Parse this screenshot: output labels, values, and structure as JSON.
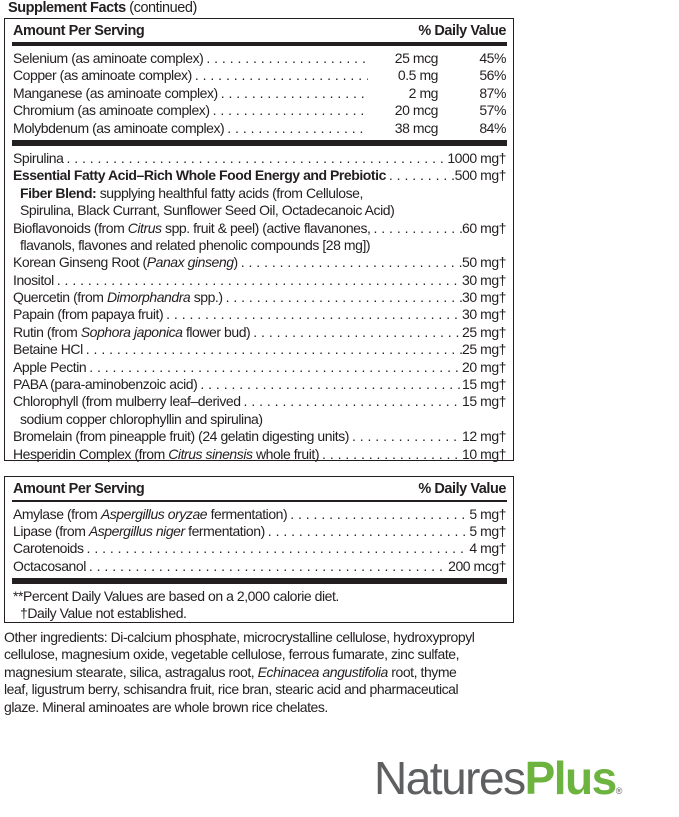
{
  "title": {
    "bold": "Supplement Facts",
    "rest": " (continued)"
  },
  "panel1": {
    "header": {
      "amount": "Amount Per Serving",
      "dv": "% Daily Value"
    },
    "minerals": [
      {
        "name": "Selenium (as aminoate complex)",
        "amount": "25 mcg",
        "dv": "45%"
      },
      {
        "name": "Copper (as aminoate complex)",
        "amount": "0.5 mg",
        "dv": "56%"
      },
      {
        "name": "Manganese (as aminoate complex)",
        "amount": "2 mg",
        "dv": "87%"
      },
      {
        "name": "Chromium (as aminoate complex)",
        "amount": "20 mcg",
        "dv": "57%"
      },
      {
        "name": "Molybdenum (as aminoate complex)",
        "amount": "38 mcg",
        "dv": "84%"
      }
    ],
    "rows": [
      {
        "parts": [
          {
            "t": "Spirulina"
          }
        ],
        "value": "1000 mg†"
      },
      {
        "parts": [
          {
            "t": "Essential Fatty Acid–Rich Whole Food Energy and Prebiotic",
            "b": true
          }
        ],
        "value": "500 mg†"
      },
      {
        "indent": true,
        "parts": [
          {
            "t": "Fiber Blend:",
            "b": true
          },
          {
            "t": " supplying healthful fatty acids (from Cellulose,"
          }
        ]
      },
      {
        "indent": true,
        "parts": [
          {
            "t": "Spirulina, Black Currant, Sunflower Seed Oil, Octadecanoic Acid)"
          }
        ]
      },
      {
        "parts": [
          {
            "t": "Bioflavonoids (from "
          },
          {
            "t": "Citrus",
            "i": true
          },
          {
            "t": " spp. fruit & peel) (active flavanones,"
          }
        ],
        "value": "60 mg†"
      },
      {
        "indent": true,
        "parts": [
          {
            "t": "flavanols, flavones and related phenolic compounds [28 mg])"
          }
        ]
      },
      {
        "parts": [
          {
            "t": "Korean Ginseng Root ("
          },
          {
            "t": "Panax ginseng",
            "i": true
          },
          {
            "t": ")"
          }
        ],
        "value": "50 mg†"
      },
      {
        "parts": [
          {
            "t": "Inositol"
          }
        ],
        "value": "30 mg†"
      },
      {
        "parts": [
          {
            "t": "Quercetin (from "
          },
          {
            "t": "Dimorphandra",
            "i": true
          },
          {
            "t": " spp.)"
          }
        ],
        "value": "30 mg†"
      },
      {
        "parts": [
          {
            "t": "Papain (from papaya fruit)"
          }
        ],
        "value": "30 mg†"
      },
      {
        "parts": [
          {
            "t": "Rutin (from "
          },
          {
            "t": "Sophora japonica",
            "i": true
          },
          {
            "t": " flower bud)"
          }
        ],
        "value": "25 mg†"
      },
      {
        "parts": [
          {
            "t": "Betaine HCl"
          }
        ],
        "value": "25 mg†"
      },
      {
        "parts": [
          {
            "t": "Apple Pectin"
          }
        ],
        "value": "20 mg†"
      },
      {
        "parts": [
          {
            "t": "PABA (para-aminobenzoic acid)"
          }
        ],
        "value": "15 mg†"
      },
      {
        "parts": [
          {
            "t": "Chlorophyll (from mulberry leaf–derived"
          }
        ],
        "value": "15 mg†"
      },
      {
        "indent": true,
        "parts": [
          {
            "t": "sodium copper chlorophyllin and spirulina)"
          }
        ]
      },
      {
        "parts": [
          {
            "t": "Bromelain (from pineapple fruit) (24 gelatin digesting units)"
          }
        ],
        "value": "12 mg†"
      },
      {
        "parts": [
          {
            "t": "Hesperidin Complex (from "
          },
          {
            "t": "Citrus sinensis",
            "i": true
          },
          {
            "t": " whole fruit)"
          }
        ],
        "value": "10 mg†"
      }
    ]
  },
  "panel2": {
    "header": {
      "amount": "Amount Per Serving",
      "dv": "% Daily Value"
    },
    "rows": [
      {
        "parts": [
          {
            "t": "Amylase (from "
          },
          {
            "t": "Aspergillus oryzae",
            "i": true
          },
          {
            "t": " fermentation)"
          }
        ],
        "value": "5 mg†"
      },
      {
        "parts": [
          {
            "t": "Lipase (from "
          },
          {
            "t": "Aspergillus niger",
            "i": true
          },
          {
            "t": " fermentation)"
          }
        ],
        "value": "5 mg†"
      },
      {
        "parts": [
          {
            "t": "Carotenoids"
          }
        ],
        "value": "4 mg†"
      },
      {
        "parts": [
          {
            "t": "Octacosanol"
          }
        ],
        "value": "200 mcg†"
      }
    ],
    "footnotes": [
      "**Percent Daily Values are based on a 2,000 calorie diet.",
      "†Daily Value not established."
    ]
  },
  "other_ingredients": [
    [
      {
        "t": "Other ingredients: Di-calcium phosphate, microcrystalline cellulose, hydroxypropyl"
      }
    ],
    [
      {
        "t": "cellulose, magnesium oxide, vegetable cellulose, ferrous fumarate, zinc sulfate,"
      }
    ],
    [
      {
        "t": "magnesium stearate, silica, astragalus root, "
      },
      {
        "t": "Echinacea angustifolia",
        "i": true
      },
      {
        "t": " root, thyme"
      }
    ],
    [
      {
        "t": "leaf, ligustrum berry, schisandra fruit, rice bran, stearic acid and pharmaceutical"
      }
    ],
    [
      {
        "t": "glaze. Mineral aminoates are whole brown rice chelates."
      }
    ]
  ],
  "logo": {
    "part1": "Natures",
    "part2": "Plus",
    "mark": "®",
    "colors": {
      "natures": "#5e5f61",
      "plus": "#6cb33f"
    }
  }
}
